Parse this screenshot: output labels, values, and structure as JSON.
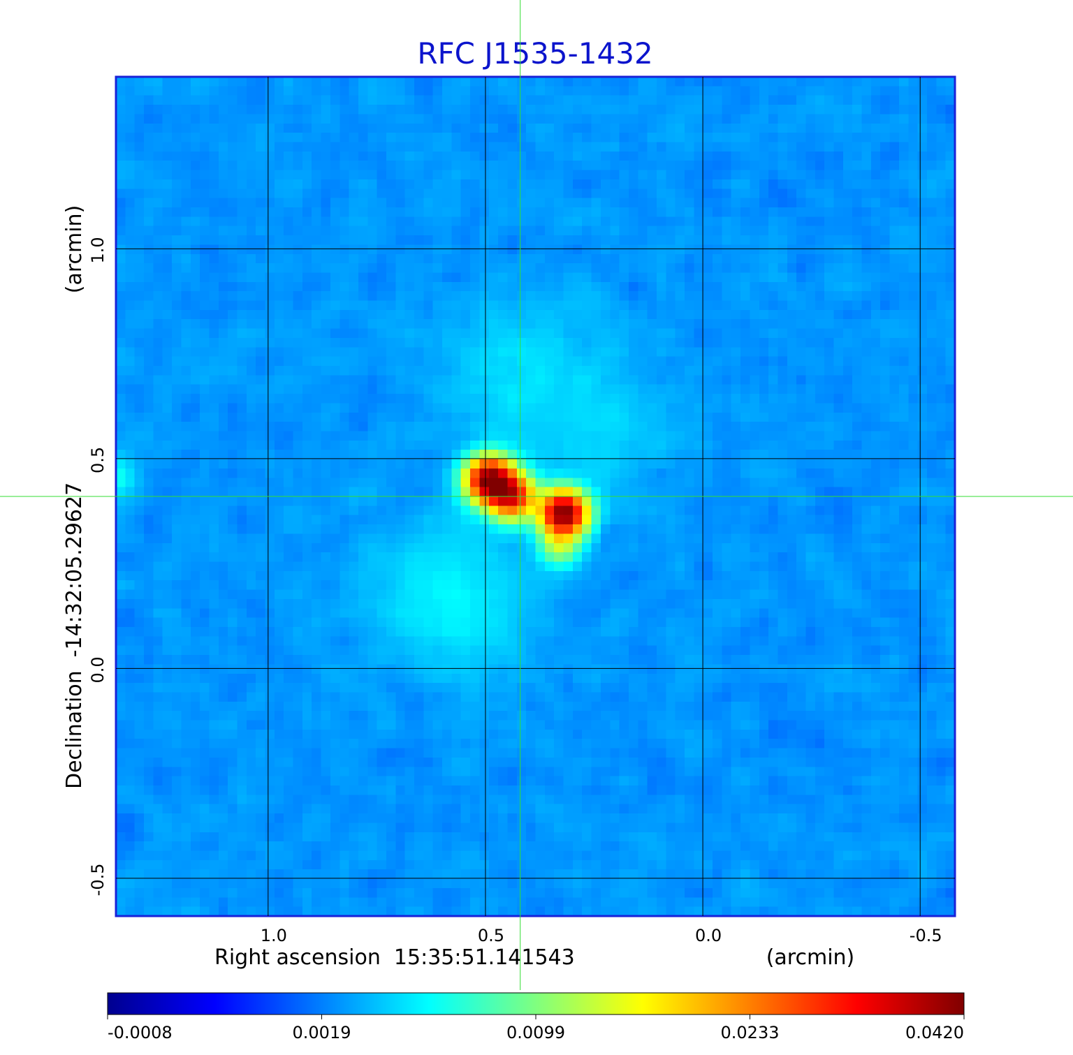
{
  "chart_data": {
    "type": "heatmap",
    "title": "RFC J1535-1432",
    "title_color": "#0b14cc",
    "xlabel": "Right ascension  15:35:51.141543",
    "xunit": "(arcmin)",
    "ylabel": "Declination  -14:32:05.29627",
    "yunit": "(arcmin)",
    "x_range_arcmin": [
      1.35,
      -0.58
    ],
    "y_range_arcmin": [
      -0.59,
      1.41
    ],
    "x_ticks": [
      {
        "value": 1.0,
        "label": "1.0"
      },
      {
        "value": 0.5,
        "label": "0.5"
      },
      {
        "value": 0.0,
        "label": "0.0"
      },
      {
        "value": -0.5,
        "label": "-0.5"
      }
    ],
    "y_ticks": [
      {
        "value": 1.0,
        "label": "1.0"
      },
      {
        "value": 0.5,
        "label": "0.5"
      },
      {
        "value": 0.0,
        "label": "0.0"
      },
      {
        "value": -0.5,
        "label": "-0.5"
      }
    ],
    "grid": true,
    "crosshair_arcmin": {
      "x": 0.42,
      "y": 0.41
    },
    "crosshair_color": "#33dd33",
    "colormap": "jet",
    "colorbar": {
      "position": "bottom",
      "labels": [
        "-0.0008",
        "0.0019",
        "0.0099",
        "0.0233",
        "0.0420"
      ]
    },
    "sources": [
      {
        "x_arcmin": 0.49,
        "y_arcmin": 0.45,
        "peak": 0.04
      },
      {
        "x_arcmin": 0.44,
        "y_arcmin": 0.41,
        "peak": 0.03
      },
      {
        "x_arcmin": 0.32,
        "y_arcmin": 0.37,
        "peak": 0.042
      },
      {
        "x_arcmin": 0.33,
        "y_arcmin": 0.29,
        "peak": 0.008
      },
      {
        "x_arcmin": 1.35,
        "y_arcmin": 0.46,
        "peak": 0.003
      }
    ],
    "diffuse": [
      {
        "x_arcmin": 0.58,
        "y_arcmin": 0.17,
        "peak": 0.0021
      },
      {
        "x_arcmin": 0.42,
        "y_arcmin": 0.7,
        "peak": 0.0014
      },
      {
        "x_arcmin": 0.25,
        "y_arcmin": 0.55,
        "peak": 0.001
      }
    ]
  }
}
